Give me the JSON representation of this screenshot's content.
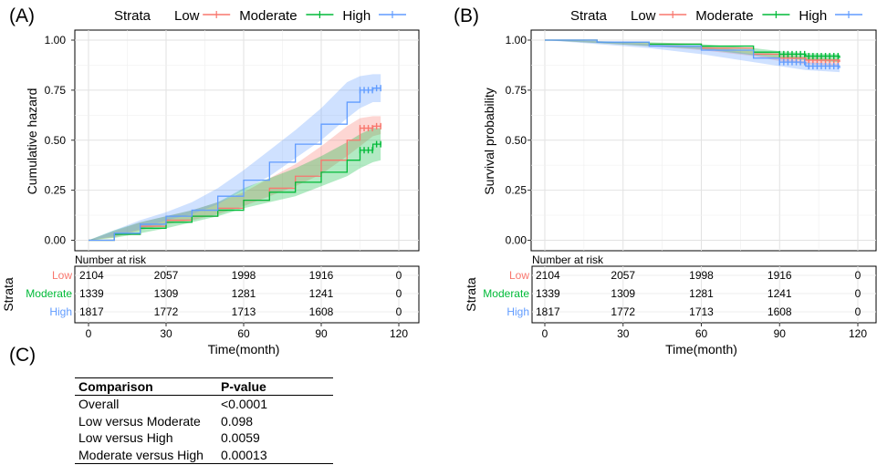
{
  "chart_data": [
    {
      "panel_label": "(A)",
      "type": "line",
      "ylabel": "Cumulative hazard",
      "xlabel": "Time(month)",
      "xlim": [
        0,
        120
      ],
      "ylim": [
        0,
        1
      ],
      "x_ticks": [
        0,
        30,
        60,
        90,
        120
      ],
      "y_ticks": [
        "0.00",
        "0.25",
        "0.50",
        "0.75",
        "1.00"
      ],
      "legend": {
        "title": "Strata",
        "position": "top"
      },
      "series": [
        {
          "name": "Low",
          "color": "#F8766D",
          "points": [
            [
              0,
              0
            ],
            [
              10,
              0.03
            ],
            [
              20,
              0.07
            ],
            [
              30,
              0.1
            ],
            [
              40,
              0.12
            ],
            [
              50,
              0.16
            ],
            [
              60,
              0.2
            ],
            [
              70,
              0.26
            ],
            [
              80,
              0.32
            ],
            [
              90,
              0.4
            ],
            [
              100,
              0.5
            ],
            [
              105,
              0.56
            ],
            [
              110,
              0.57
            ],
            [
              113,
              0.58
            ]
          ],
          "ci_upper": [
            [
              0,
              0
            ],
            [
              10,
              0.045
            ],
            [
              20,
              0.09
            ],
            [
              30,
              0.12
            ],
            [
              40,
              0.15
            ],
            [
              50,
              0.19
            ],
            [
              60,
              0.24
            ],
            [
              70,
              0.31
            ],
            [
              80,
              0.38
            ],
            [
              90,
              0.47
            ],
            [
              100,
              0.57
            ],
            [
              105,
              0.61
            ],
            [
              110,
              0.62
            ],
            [
              113,
              0.62
            ]
          ],
          "ci_lower": [
            [
              0,
              0
            ],
            [
              10,
              0.015
            ],
            [
              20,
              0.05
            ],
            [
              30,
              0.08
            ],
            [
              40,
              0.1
            ],
            [
              50,
              0.13
            ],
            [
              60,
              0.17
            ],
            [
              70,
              0.22
            ],
            [
              80,
              0.27
            ],
            [
              90,
              0.33
            ],
            [
              100,
              0.42
            ],
            [
              105,
              0.47
            ],
            [
              110,
              0.52
            ],
            [
              113,
              0.53
            ]
          ]
        },
        {
          "name": "Moderate",
          "color": "#00BA38",
          "points": [
            [
              0,
              0
            ],
            [
              10,
              0.03
            ],
            [
              20,
              0.06
            ],
            [
              30,
              0.09
            ],
            [
              40,
              0.12
            ],
            [
              50,
              0.15
            ],
            [
              60,
              0.2
            ],
            [
              70,
              0.24
            ],
            [
              80,
              0.29
            ],
            [
              90,
              0.34
            ],
            [
              100,
              0.4
            ],
            [
              105,
              0.45
            ],
            [
              110,
              0.48
            ],
            [
              113,
              0.49
            ]
          ],
          "ci_upper": [
            [
              0,
              0
            ],
            [
              10,
              0.05
            ],
            [
              20,
              0.09
            ],
            [
              30,
              0.12
            ],
            [
              40,
              0.15
            ],
            [
              50,
              0.19
            ],
            [
              60,
              0.26
            ],
            [
              70,
              0.31
            ],
            [
              80,
              0.36
            ],
            [
              90,
              0.42
            ],
            [
              100,
              0.49
            ],
            [
              105,
              0.53
            ],
            [
              110,
              0.56
            ],
            [
              113,
              0.56
            ]
          ],
          "ci_lower": [
            [
              0,
              0
            ],
            [
              10,
              0.012
            ],
            [
              20,
              0.035
            ],
            [
              30,
              0.06
            ],
            [
              40,
              0.09
            ],
            [
              50,
              0.12
            ],
            [
              60,
              0.16
            ],
            [
              70,
              0.19
            ],
            [
              80,
              0.22
            ],
            [
              90,
              0.27
            ],
            [
              100,
              0.32
            ],
            [
              105,
              0.36
            ],
            [
              110,
              0.39
            ],
            [
              113,
              0.4
            ]
          ]
        },
        {
          "name": "High",
          "color": "#619CFF",
          "points": [
            [
              0,
              0
            ],
            [
              10,
              0.035
            ],
            [
              20,
              0.08
            ],
            [
              30,
              0.12
            ],
            [
              40,
              0.15
            ],
            [
              50,
              0.22
            ],
            [
              60,
              0.3
            ],
            [
              70,
              0.39
            ],
            [
              80,
              0.48
            ],
            [
              90,
              0.58
            ],
            [
              100,
              0.69
            ],
            [
              105,
              0.75
            ],
            [
              110,
              0.76
            ],
            [
              113,
              0.76
            ]
          ],
          "ci_upper": [
            [
              0,
              0
            ],
            [
              10,
              0.05
            ],
            [
              20,
              0.1
            ],
            [
              30,
              0.14
            ],
            [
              40,
              0.19
            ],
            [
              50,
              0.26
            ],
            [
              60,
              0.35
            ],
            [
              70,
              0.45
            ],
            [
              80,
              0.55
            ],
            [
              90,
              0.66
            ],
            [
              100,
              0.79
            ],
            [
              105,
              0.82
            ],
            [
              110,
              0.83
            ],
            [
              113,
              0.83
            ]
          ],
          "ci_lower": [
            [
              0,
              0
            ],
            [
              10,
              0.02
            ],
            [
              20,
              0.055
            ],
            [
              30,
              0.1
            ],
            [
              40,
              0.13
            ],
            [
              50,
              0.18
            ],
            [
              60,
              0.25
            ],
            [
              70,
              0.32
            ],
            [
              80,
              0.41
            ],
            [
              90,
              0.5
            ],
            [
              100,
              0.61
            ],
            [
              105,
              0.66
            ],
            [
              110,
              0.69
            ],
            [
              113,
              0.69
            ]
          ]
        }
      ],
      "risk_table": {
        "title": "Number at risk",
        "ylabel": "Strata",
        "times": [
          0,
          30,
          60,
          90,
          120
        ],
        "rows": [
          {
            "name": "Low",
            "counts": [
              "2104",
              "2057",
              "1998",
              "1916",
              "0"
            ]
          },
          {
            "name": "Moderate",
            "counts": [
              "1339",
              "1309",
              "1281",
              "1241",
              "0"
            ]
          },
          {
            "name": "High",
            "counts": [
              "1817",
              "1772",
              "1713",
              "1608",
              "0"
            ]
          }
        ]
      }
    },
    {
      "panel_label": "(B)",
      "type": "line",
      "ylabel": "Survival probability",
      "xlabel": "Time(month)",
      "xlim": [
        0,
        120
      ],
      "ylim": [
        0,
        1
      ],
      "x_ticks": [
        0,
        30,
        60,
        90,
        120
      ],
      "y_ticks": [
        "0.00",
        "0.25",
        "0.50",
        "0.75",
        "1.00"
      ],
      "legend": {
        "title": "Strata",
        "position": "top"
      },
      "series": [
        {
          "name": "Low",
          "color": "#F8766D",
          "points": [
            [
              0,
              1
            ],
            [
              20,
              0.99
            ],
            [
              40,
              0.98
            ],
            [
              60,
              0.96
            ],
            [
              80,
              0.93
            ],
            [
              90,
              0.91
            ],
            [
              100,
              0.9
            ],
            [
              113,
              0.89
            ]
          ],
          "ci_upper": [
            [
              0,
              1
            ],
            [
              20,
              0.995
            ],
            [
              40,
              0.985
            ],
            [
              60,
              0.97
            ],
            [
              80,
              0.945
            ],
            [
              90,
              0.93
            ],
            [
              100,
              0.915
            ],
            [
              113,
              0.905
            ]
          ],
          "ci_lower": [
            [
              0,
              1
            ],
            [
              20,
              0.985
            ],
            [
              40,
              0.97
            ],
            [
              60,
              0.95
            ],
            [
              80,
              0.92
            ],
            [
              90,
              0.895
            ],
            [
              100,
              0.88
            ],
            [
              113,
              0.87
            ]
          ]
        },
        {
          "name": "Moderate",
          "color": "#00BA38",
          "points": [
            [
              0,
              1
            ],
            [
              20,
              0.99
            ],
            [
              40,
              0.98
            ],
            [
              60,
              0.97
            ],
            [
              80,
              0.94
            ],
            [
              90,
              0.93
            ],
            [
              100,
              0.92
            ],
            [
              113,
              0.91
            ]
          ],
          "ci_upper": [
            [
              0,
              1
            ],
            [
              20,
              0.995
            ],
            [
              40,
              0.99
            ],
            [
              60,
              0.98
            ],
            [
              80,
              0.96
            ],
            [
              90,
              0.945
            ],
            [
              100,
              0.935
            ],
            [
              113,
              0.93
            ]
          ],
          "ci_lower": [
            [
              0,
              1
            ],
            [
              20,
              0.985
            ],
            [
              40,
              0.97
            ],
            [
              60,
              0.955
            ],
            [
              80,
              0.925
            ],
            [
              90,
              0.91
            ],
            [
              100,
              0.9
            ],
            [
              113,
              0.89
            ]
          ]
        },
        {
          "name": "High",
          "color": "#619CFF",
          "points": [
            [
              0,
              1
            ],
            [
              20,
              0.99
            ],
            [
              40,
              0.97
            ],
            [
              60,
              0.95
            ],
            [
              80,
              0.91
            ],
            [
              90,
              0.89
            ],
            [
              100,
              0.87
            ],
            [
              113,
              0.86
            ]
          ],
          "ci_upper": [
            [
              0,
              1
            ],
            [
              20,
              0.995
            ],
            [
              40,
              0.98
            ],
            [
              60,
              0.965
            ],
            [
              80,
              0.93
            ],
            [
              90,
              0.91
            ],
            [
              100,
              0.89
            ],
            [
              113,
              0.88
            ]
          ],
          "ci_lower": [
            [
              0,
              1
            ],
            [
              20,
              0.98
            ],
            [
              40,
              0.96
            ],
            [
              60,
              0.93
            ],
            [
              80,
              0.89
            ],
            [
              90,
              0.87
            ],
            [
              100,
              0.85
            ],
            [
              113,
              0.84
            ]
          ]
        }
      ],
      "risk_table": {
        "title": "Number at risk",
        "ylabel": "Strata",
        "times": [
          0,
          30,
          60,
          90,
          120
        ],
        "rows": [
          {
            "name": "Low",
            "counts": [
              "2104",
              "2057",
              "1998",
              "1916",
              "0"
            ]
          },
          {
            "name": "Moderate",
            "counts": [
              "1339",
              "1309",
              "1281",
              "1241",
              "0"
            ]
          },
          {
            "name": "High",
            "counts": [
              "1817",
              "1772",
              "1713",
              "1608",
              "0"
            ]
          }
        ]
      }
    },
    {
      "panel_label": "(C)",
      "type": "table",
      "columns": [
        "Comparison",
        "P-value"
      ],
      "rows": [
        [
          "Overall",
          "<0.0001"
        ],
        [
          "Low versus Moderate",
          "0.098"
        ],
        [
          "Low versus High",
          "0.0059"
        ],
        [
          "Moderate versus High",
          "0.00013"
        ]
      ]
    }
  ]
}
